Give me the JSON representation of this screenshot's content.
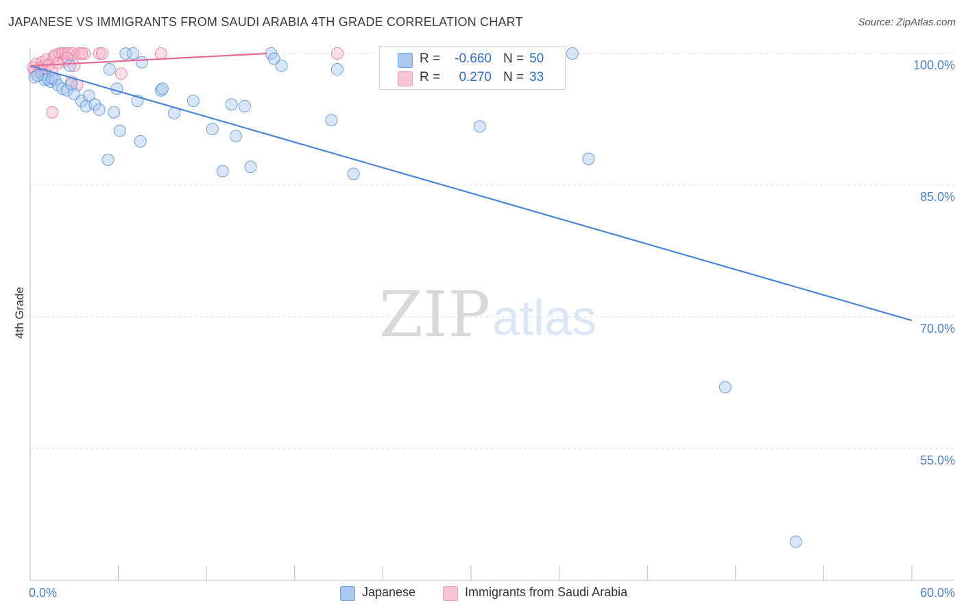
{
  "header": {
    "title": "JAPANESE VS IMMIGRANTS FROM SAUDI ARABIA 4TH GRADE CORRELATION CHART",
    "source": "Source: ZipAtlas.com"
  },
  "legend": {
    "rows": [
      {
        "r_label": "R =",
        "r_value": "-0.660",
        "n_label": "N =",
        "n_value": "50",
        "color": "#a8c8f0"
      },
      {
        "r_label": "R =",
        "r_value": "0.270",
        "n_label": "N =",
        "n_value": "33",
        "color": "#f7b8cc"
      }
    ]
  },
  "bottom_legend": {
    "items": [
      {
        "label": "Japanese",
        "color": "#a8c8f0"
      },
      {
        "label": "Immigrants from Saudi Arabia",
        "color": "#f7b8cc"
      }
    ]
  },
  "watermark": {
    "zip": "ZIP",
    "atlas": "atlas"
  },
  "chart_data": {
    "type": "scatter",
    "title": "JAPANESE VS IMMIGRANTS FROM SAUDI ARABIA 4TH GRADE CORRELATION CHART",
    "xlabel": "",
    "ylabel": "4th Grade",
    "xlim": [
      0,
      60
    ],
    "ylim": [
      40,
      100
    ],
    "x_tick_labels": [
      "0.0%",
      "60.0%"
    ],
    "y_ticks": [
      55,
      70,
      85,
      100
    ],
    "y_tick_labels": [
      "55.0%",
      "70.0%",
      "85.0%",
      "100.0%"
    ],
    "grid": true,
    "series": [
      {
        "name": "Japanese",
        "color": "#4a86d8",
        "fill": "#a8c8f0",
        "points": [
          [
            0.3,
            97.3
          ],
          [
            0.8,
            97.6
          ],
          [
            1.0,
            97.0
          ],
          [
            1.2,
            97.1
          ],
          [
            1.4,
            96.8
          ],
          [
            1.7,
            97.0
          ],
          [
            1.9,
            96.4
          ],
          [
            2.2,
            96.0
          ],
          [
            2.7,
            98.6
          ],
          [
            2.5,
            95.8
          ],
          [
            3.0,
            95.4
          ],
          [
            3.5,
            94.6
          ],
          [
            3.8,
            94.0
          ],
          [
            4.0,
            95.2
          ],
          [
            4.4,
            94.2
          ],
          [
            4.7,
            93.6
          ],
          [
            5.4,
            98.2
          ],
          [
            5.7,
            93.3
          ],
          [
            5.9,
            96.0
          ],
          [
            6.1,
            91.2
          ],
          [
            6.5,
            100.0
          ],
          [
            7.0,
            100.0
          ],
          [
            7.3,
            94.6
          ],
          [
            7.6,
            99.0
          ],
          [
            7.5,
            90.0
          ],
          [
            8.9,
            95.8
          ],
          [
            9.0,
            96.0
          ],
          [
            9.8,
            93.2
          ],
          [
            11.1,
            94.6
          ],
          [
            12.4,
            91.4
          ],
          [
            13.1,
            86.6
          ],
          [
            13.7,
            94.2
          ],
          [
            14.0,
            90.6
          ],
          [
            14.6,
            94.0
          ],
          [
            15.0,
            87.1
          ],
          [
            16.4,
            100.0
          ],
          [
            16.6,
            99.4
          ],
          [
            17.1,
            98.6
          ],
          [
            20.5,
            92.4
          ],
          [
            20.9,
            98.2
          ],
          [
            22.0,
            86.3
          ],
          [
            5.3,
            87.9
          ],
          [
            30.6,
            91.7
          ],
          [
            36.9,
            100.0
          ],
          [
            38.0,
            88.0
          ],
          [
            47.3,
            62.0
          ],
          [
            52.1,
            44.4
          ],
          [
            0.5,
            97.5
          ],
          [
            1.5,
            97.2
          ],
          [
            2.8,
            96.5
          ]
        ],
        "trendline": {
          "x": [
            0,
            60
          ],
          "y": [
            98.6,
            69.6
          ]
        }
      },
      {
        "name": "Immigrants from Saudi Arabia",
        "color": "#e86a92",
        "fill": "#f7b8cc",
        "points": [
          [
            0.2,
            98.4
          ],
          [
            0.4,
            98.8
          ],
          [
            0.6,
            98.0
          ],
          [
            0.7,
            98.3
          ],
          [
            0.8,
            99.0
          ],
          [
            0.9,
            98.6
          ],
          [
            1.0,
            98.2
          ],
          [
            1.1,
            99.3
          ],
          [
            1.3,
            98.7
          ],
          [
            1.5,
            98.2
          ],
          [
            1.6,
            99.6
          ],
          [
            1.7,
            99.8
          ],
          [
            2.0,
            100.0
          ],
          [
            2.2,
            100.0
          ],
          [
            2.3,
            99.1
          ],
          [
            2.4,
            100.0
          ],
          [
            2.6,
            100.0
          ],
          [
            2.8,
            96.8
          ],
          [
            2.9,
            100.0
          ],
          [
            3.0,
            98.6
          ],
          [
            3.2,
            96.4
          ],
          [
            3.3,
            100.0
          ],
          [
            3.7,
            100.0
          ],
          [
            4.7,
            100.0
          ],
          [
            4.9,
            100.0
          ],
          [
            6.2,
            97.7
          ],
          [
            8.9,
            100.0
          ],
          [
            20.9,
            100.0
          ],
          [
            1.5,
            93.3
          ],
          [
            0.3,
            98.0
          ],
          [
            1.9,
            98.9
          ],
          [
            2.5,
            99.5
          ],
          [
            3.5,
            100.0
          ]
        ],
        "trendline": {
          "x": [
            0,
            16.1
          ],
          "y": [
            98.6,
            100.0
          ]
        }
      }
    ]
  }
}
